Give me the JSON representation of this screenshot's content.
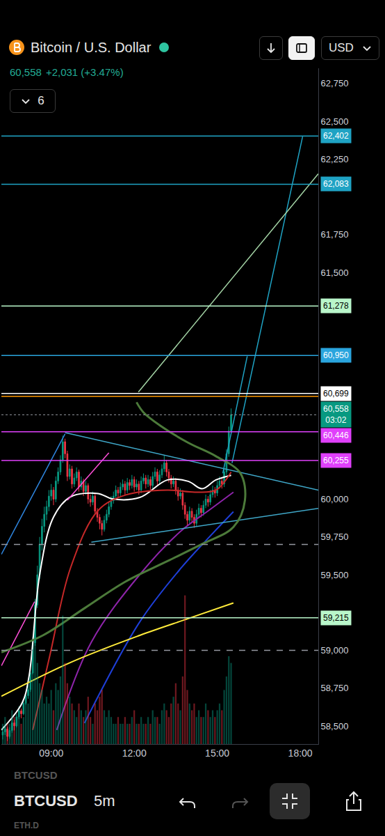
{
  "header": {
    "title": "Bitcoin / U.S. Dollar",
    "price": "60,558",
    "change": "+2,031 (+3.47%)",
    "currency": "USD",
    "indicators": "6"
  },
  "toolbar": {
    "symbol": "BTCUSD",
    "interval": "5m",
    "watchlist": [
      "BTCUSD",
      "ETH.D"
    ]
  },
  "chart_data": {
    "type": "candlestick",
    "grid": false,
    "x": [
      435,
      440,
      445,
      450,
      455,
      460,
      465,
      470,
      475,
      480,
      485,
      490,
      495,
      500,
      505,
      510,
      515,
      520,
      525,
      530,
      535,
      540,
      545,
      550,
      555,
      560,
      565,
      570,
      575,
      580,
      585,
      590,
      595,
      600,
      605,
      610,
      615,
      620,
      625,
      630,
      635,
      640,
      645,
      650,
      655,
      660,
      665,
      670,
      675,
      680,
      685,
      690,
      695,
      700,
      705,
      710,
      715,
      720,
      725,
      730,
      735,
      740,
      745,
      750,
      755,
      760,
      765,
      770,
      775,
      780,
      785,
      790,
      795,
      800,
      805,
      810,
      815,
      820,
      825,
      830,
      835,
      840,
      845,
      850,
      855,
      860,
      865,
      870,
      875,
      880,
      885,
      890,
      895,
      900,
      905,
      910,
      915,
      920,
      925,
      930
    ],
    "open": [
      58440,
      58460,
      58480,
      58430,
      58470,
      58520,
      58500,
      58560,
      58600,
      58580,
      58650,
      58700,
      58740,
      58850,
      59050,
      59300,
      59500,
      59700,
      59820,
      59900,
      59950,
      60020,
      60060,
      60000,
      60120,
      60180,
      60260,
      60380,
      60300,
      60150,
      60200,
      60100,
      60140,
      60180,
      60080,
      60120,
      60050,
      60090,
      60000,
      59980,
      60020,
      59920,
      59880,
      59840,
      59800,
      59860,
      59900,
      59950,
      59990,
      60020,
      60060,
      60040,
      60080,
      60100,
      60060,
      60110,
      60090,
      60130,
      60080,
      60100,
      60060,
      60120,
      60140,
      60100,
      60130,
      60090,
      60150,
      60180,
      60120,
      60160,
      60200,
      60240,
      60180,
      60140,
      60100,
      60120,
      60060,
      60020,
      60040,
      59960,
      59900,
      59860,
      59920,
      59880,
      59840,
      59900,
      59940,
      59910,
      59960,
      60000,
      59980,
      60030,
      60060,
      60040,
      60090,
      60120,
      60100,
      60180,
      60300,
      60450
    ],
    "high": [
      58490,
      58510,
      58495,
      58490,
      58545,
      58540,
      58580,
      58630,
      58615,
      58670,
      58730,
      58770,
      58880,
      59090,
      59340,
      59560,
      59750,
      59870,
      59950,
      59990,
      60060,
      60100,
      60080,
      60150,
      60210,
      60290,
      60420,
      60400,
      60320,
      60230,
      60220,
      60170,
      60210,
      60195,
      60150,
      60135,
      60120,
      60105,
      60030,
      60050,
      60035,
      59940,
      59900,
      59860,
      59890,
      59930,
      59980,
      60020,
      60050,
      60090,
      60080,
      60110,
      60130,
      60120,
      60140,
      60130,
      60160,
      60150,
      60130,
      60120,
      60150,
      60170,
      60160,
      60160,
      60150,
      60180,
      60210,
      60200,
      60190,
      60230,
      60290,
      60260,
      60200,
      60160,
      60150,
      60140,
      60080,
      60070,
      60060,
      59980,
      59920,
      59950,
      59940,
      59900,
      59930,
      59970,
      59960,
      59990,
      60030,
      60020,
      60060,
      60090,
      60080,
      60120,
      60150,
      60140,
      60210,
      60330,
      60480,
      60600
    ],
    "low": [
      58410,
      58440,
      58400,
      58415,
      58455,
      58470,
      58490,
      58545,
      58550,
      58570,
      58640,
      58680,
      58725,
      58840,
      59030,
      59280,
      59470,
      59660,
      59780,
      59860,
      59920,
      59990,
      59960,
      59980,
      60100,
      60160,
      60240,
      60270,
      60120,
      60130,
      60070,
      60080,
      60120,
      60050,
      60060,
      60020,
      60030,
      59970,
      59950,
      59960,
      59900,
      59850,
      59800,
      59760,
      59785,
      59840,
      59880,
      59930,
      59970,
      60000,
      60010,
      60020,
      60060,
      60030,
      60040,
      60060,
      60070,
      60050,
      60060,
      60030,
      60040,
      60100,
      60070,
      60080,
      60060,
      60070,
      60130,
      60090,
      60100,
      60140,
      60180,
      60150,
      60110,
      60070,
      60080,
      60030,
      59990,
      60000,
      59930,
      59870,
      59820,
      59840,
      59850,
      59810,
      59820,
      59880,
      59880,
      59890,
      59940,
      59950,
      59960,
      60010,
      60010,
      60020,
      60070,
      60070,
      60080,
      60160,
      60280,
      60430
    ],
    "close": [
      58460,
      58480,
      58430,
      58470,
      58520,
      58500,
      58560,
      58600,
      58580,
      58650,
      58700,
      58740,
      58850,
      59050,
      59300,
      59500,
      59700,
      59820,
      59900,
      59950,
      60020,
      60060,
      60000,
      60120,
      60180,
      60260,
      60380,
      60300,
      60150,
      60200,
      60100,
      60140,
      60180,
      60080,
      60120,
      60050,
      60090,
      60000,
      59980,
      60020,
      59920,
      59880,
      59840,
      59800,
      59860,
      59900,
      59950,
      59990,
      60020,
      60060,
      60040,
      60080,
      60100,
      60060,
      60110,
      60090,
      60130,
      60080,
      60100,
      60060,
      60120,
      60140,
      60100,
      60130,
      60090,
      60150,
      60180,
      60120,
      60160,
      60200,
      60240,
      60180,
      60140,
      60100,
      60120,
      60060,
      60020,
      60040,
      59960,
      59900,
      59860,
      59920,
      59880,
      59840,
      59900,
      59940,
      59910,
      59960,
      60000,
      59980,
      60030,
      60060,
      60040,
      60090,
      60120,
      60100,
      60180,
      60300,
      60450,
      60558
    ],
    "volume": {
      "axis": "y2",
      "values": [
        3,
        4,
        3,
        3,
        5,
        4,
        4,
        5,
        3,
        4,
        6,
        6,
        10,
        14,
        16,
        12,
        9,
        8,
        6,
        7,
        6,
        8,
        5,
        9,
        8,
        10,
        19,
        12,
        9,
        7,
        6,
        5,
        4,
        6,
        5,
        4,
        5,
        7,
        4,
        3,
        6,
        5,
        7,
        8,
        5,
        4,
        5,
        4,
        3,
        3,
        4,
        3,
        3,
        4,
        3,
        3,
        4,
        5,
        3,
        3,
        4,
        3,
        3,
        4,
        3,
        5,
        4,
        4,
        3,
        5,
        6,
        5,
        4,
        6,
        7,
        9,
        6,
        5,
        10,
        22,
        8,
        6,
        5,
        6,
        4,
        5,
        4,
        4,
        6,
        5,
        4,
        5,
        4,
        5,
        6,
        5,
        8,
        10,
        13,
        12
      ]
    },
    "series": [
      {
        "color": "#ffffff",
        "x": [
          432,
          477,
          492,
          515,
          545,
          582,
          642,
          672,
          732,
          792,
          837,
          867,
          897,
          930
        ],
        "values": [
          58473,
          58652,
          58830,
          59501,
          59881,
          60015,
          60037,
          60002,
          60011,
          60127,
          60118,
          60069,
          60127,
          60158
        ]
      },
      {
        "color": "#c62828",
        "x": [
          500,
          537,
          582,
          642,
          702,
          792,
          852,
          897,
          930
        ],
        "values": [
          58473,
          58965,
          59546,
          59926,
          60028,
          60060,
          60046,
          60060,
          60180
        ]
      },
      {
        "color": "#8e24aa",
        "x": [
          552,
          627,
          732,
          822,
          882,
          935
        ],
        "values": [
          58473,
          59054,
          59501,
          59791,
          59926,
          60046
        ]
      },
      {
        "color": "#1e3fd8",
        "x": [
          612,
          732,
          822,
          882,
          935
        ],
        "values": [
          58518,
          59188,
          59546,
          59747,
          59917
        ]
      },
      {
        "color": "#ffeb3b",
        "x": [
          432,
          582,
          732,
          837,
          935
        ],
        "values": [
          58696,
          58920,
          59099,
          59210,
          59313
        ]
      }
    ],
    "drawings": [
      {
        "color": "#2f86e0",
        "line_style": "solid",
        "x": [
          432,
          570
        ],
        "values": [
          59635,
          60431
        ]
      },
      {
        "color": "#ff4fd8",
        "line_style": "solid",
        "x": [
          575,
          665
        ],
        "values": [
          59993,
          60306
        ]
      },
      {
        "color": "#ff4fd8",
        "line_style": "solid",
        "x": [
          432,
          504
        ],
        "values": [
          58898,
          59322
        ]
      },
      {
        "color": "#3fa7c8",
        "line_style": "solid",
        "x": [
          570,
          1119
        ],
        "values": [
          60440,
          60060
        ]
      },
      {
        "color": "#3fa7c8",
        "line_style": "solid",
        "x": [
          627,
          1119
        ],
        "values": [
          59715,
          59939
        ]
      },
      {
        "color": "#1fa3c4",
        "line_style": "solid",
        "x": [
          932,
          1085
        ],
        "values": [
          60239,
          62398
        ]
      },
      {
        "color": "#1fa3c4",
        "line_style": "solid",
        "x": [
          912,
          965
        ],
        "values": [
          60171,
          60945
        ]
      },
      {
        "color": "#a5d6a7",
        "line_style": "solid",
        "x": [
          729,
          1119
        ],
        "values": [
          60708,
          62152
        ]
      },
      {
        "color": "#4c7a3a",
        "line_style": "solid",
        "x": [
          725,
          740,
          777,
          837,
          897,
          950,
          960,
          935,
          867,
          792,
          702,
          612,
          522,
          432
        ],
        "values": [
          60641,
          60574,
          60485,
          60373,
          60284,
          60172,
          59993,
          59815,
          59703,
          59590,
          59456,
          59278,
          59099,
          58987
        ]
      }
    ],
    "levels": [
      {
        "value": 62402,
        "label": "62,402",
        "color": "#1fa3c4"
      },
      {
        "value": 62083,
        "label": "62,083",
        "color": "#1fa3c4"
      },
      {
        "value": 61278,
        "label": "61,278",
        "color": "#b9f6ca"
      },
      {
        "value": 60950,
        "label": "60,950",
        "color": "#2aa5de"
      },
      {
        "value": 60699,
        "label": "60,699",
        "color": "#ffffff"
      },
      {
        "value": 60680,
        "color": "#ff9800"
      },
      {
        "value": 60446,
        "label": "60,446",
        "color": "#e040fb"
      },
      {
        "value": 60255,
        "label": "60,255",
        "color": "#e040fb"
      },
      {
        "value": 59700,
        "color": "#9598a1",
        "line_style": "dashed"
      },
      {
        "value": 59215,
        "label": "59,215",
        "color": "#b9f6ca"
      },
      {
        "value": 59000,
        "color": "#9598a1",
        "line_style": "dashed"
      }
    ],
    "price_label": {
      "value": 60558,
      "label": "60,558",
      "countdown": "03:02",
      "color": "#089981",
      "line_style": "dotted"
    },
    "xlim": [
      432,
      1119
    ],
    "xticks": [
      {
        "value": 540,
        "label": "09:00"
      },
      {
        "value": 720,
        "label": "12:00"
      },
      {
        "value": 900,
        "label": "15:00"
      },
      {
        "value": 1080,
        "label": "18:00"
      }
    ],
    "ylim": [
      58380,
      62850
    ],
    "yticks": [
      {
        "value": 58500,
        "label": "58,500"
      },
      {
        "value": 58750,
        "label": "58,750"
      },
      {
        "value": 59000,
        "label": "59,000"
      },
      {
        "value": 59500,
        "label": "59,500"
      },
      {
        "value": 59750,
        "label": "59,750"
      },
      {
        "value": 60000,
        "label": "60,000"
      },
      {
        "value": 61500,
        "label": "61,500"
      },
      {
        "value": 61750,
        "label": "61,750"
      },
      {
        "value": 62250,
        "label": "62,250"
      },
      {
        "value": 62500,
        "label": "62,500"
      },
      {
        "value": 62750,
        "label": "62,750"
      }
    ],
    "y2lim": [
      0,
      100
    ],
    "y2ticks": []
  }
}
